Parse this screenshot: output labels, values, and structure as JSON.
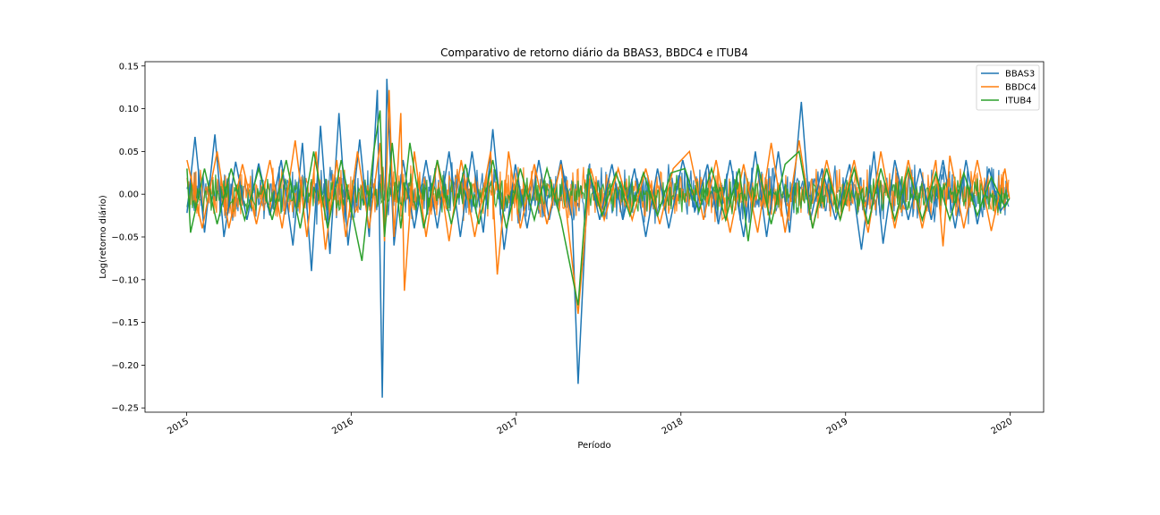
{
  "chart_data": {
    "type": "line",
    "title": "Comparativo de retorno diário da BBAS3, BBDC4 e ITUB4",
    "xlabel": "Período",
    "ylabel": "Log(retorno diário)",
    "xlim": [
      "2014-10-01",
      "2020-03-15"
    ],
    "ylim": [
      -0.255,
      0.155
    ],
    "x_ticks": [
      "2015",
      "2016",
      "2017",
      "2018",
      "2019",
      "2020"
    ],
    "y_ticks": [
      "0.15",
      "0.10",
      "0.05",
      "0.00",
      "−0.05",
      "−0.10",
      "−0.15",
      "−0.20",
      "−0.25"
    ],
    "y_tick_values": [
      0.15,
      0.1,
      0.05,
      0.0,
      -0.05,
      -0.1,
      -0.15,
      -0.2,
      -0.25
    ],
    "legend_position": "top-right",
    "grid": false,
    "series": [
      {
        "name": "BBAS3",
        "color": "#1f77b4",
        "points": [
          [
            "2015-01-02",
            -0.022
          ],
          [
            "2015-01-20",
            0.067
          ],
          [
            "2015-02-10",
            -0.045
          ],
          [
            "2015-03-05",
            0.07
          ],
          [
            "2015-03-25",
            -0.05
          ],
          [
            "2015-04-20",
            0.038
          ],
          [
            "2015-05-15",
            -0.03
          ],
          [
            "2015-06-10",
            0.036
          ],
          [
            "2015-07-05",
            -0.025
          ],
          [
            "2015-07-30",
            0.04
          ],
          [
            "2015-08-25",
            -0.06
          ],
          [
            "2015-09-15",
            0.06
          ],
          [
            "2015-10-05",
            -0.09
          ],
          [
            "2015-10-25",
            0.08
          ],
          [
            "2015-11-15",
            -0.07
          ],
          [
            "2015-12-05",
            0.095
          ],
          [
            "2015-12-25",
            -0.06
          ],
          [
            "2016-01-20",
            0.064
          ],
          [
            "2016-02-10",
            -0.05
          ],
          [
            "2016-02-28",
            0.122
          ],
          [
            "2016-03-10",
            -0.238
          ],
          [
            "2016-03-20",
            0.135
          ],
          [
            "2016-04-05",
            -0.06
          ],
          [
            "2016-04-25",
            0.04
          ],
          [
            "2016-05-20",
            -0.04
          ],
          [
            "2016-06-15",
            0.04
          ],
          [
            "2016-07-10",
            -0.04
          ],
          [
            "2016-08-05",
            0.05
          ],
          [
            "2016-08-30",
            -0.05
          ],
          [
            "2016-09-25",
            0.05
          ],
          [
            "2016-10-20",
            -0.045
          ],
          [
            "2016-11-10",
            0.076
          ],
          [
            "2016-12-05",
            -0.065
          ],
          [
            "2016-12-30",
            0.035
          ],
          [
            "2017-01-25",
            -0.04
          ],
          [
            "2017-02-20",
            0.04
          ],
          [
            "2017-03-15",
            -0.03
          ],
          [
            "2017-04-10",
            0.04
          ],
          [
            "2017-05-05",
            -0.03
          ],
          [
            "2017-05-18",
            -0.222
          ],
          [
            "2017-06-10",
            0.03
          ],
          [
            "2017-07-05",
            -0.03
          ],
          [
            "2017-08-01",
            0.035
          ],
          [
            "2017-08-25",
            -0.03
          ],
          [
            "2017-09-20",
            0.03
          ],
          [
            "2017-10-15",
            -0.05
          ],
          [
            "2017-11-10",
            0.03
          ],
          [
            "2017-12-05",
            -0.04
          ],
          [
            "2018-01-05",
            0.04
          ],
          [
            "2018-02-01",
            -0.02
          ],
          [
            "2018-03-01",
            0.035
          ],
          [
            "2018-03-25",
            -0.035
          ],
          [
            "2018-04-20",
            0.04
          ],
          [
            "2018-05-20",
            -0.05
          ],
          [
            "2018-06-15",
            0.05
          ],
          [
            "2018-07-10",
            -0.05
          ],
          [
            "2018-08-05",
            0.05
          ],
          [
            "2018-08-30",
            -0.045
          ],
          [
            "2018-09-25",
            0.108
          ],
          [
            "2018-10-15",
            -0.03
          ],
          [
            "2018-11-10",
            0.03
          ],
          [
            "2018-12-10",
            -0.03
          ],
          [
            "2019-01-10",
            0.035
          ],
          [
            "2019-02-05",
            -0.065
          ],
          [
            "2019-03-05",
            0.05
          ],
          [
            "2019-03-25",
            -0.058
          ],
          [
            "2019-04-20",
            0.04
          ],
          [
            "2019-05-20",
            -0.03
          ],
          [
            "2019-06-15",
            0.03
          ],
          [
            "2019-07-10",
            -0.03
          ],
          [
            "2019-08-05",
            0.04
          ],
          [
            "2019-09-01",
            -0.04
          ],
          [
            "2019-09-25",
            0.04
          ],
          [
            "2019-10-20",
            -0.035
          ],
          [
            "2019-11-15",
            0.03
          ],
          [
            "2019-12-10",
            -0.02
          ],
          [
            "2019-12-30",
            -0.005
          ]
        ]
      },
      {
        "name": "BBDC4",
        "color": "#ff7f0e",
        "points": [
          [
            "2015-01-02",
            0.04
          ],
          [
            "2015-02-05",
            -0.04
          ],
          [
            "2015-03-10",
            0.05
          ],
          [
            "2015-04-05",
            -0.04
          ],
          [
            "2015-05-05",
            0.035
          ],
          [
            "2015-06-05",
            -0.035
          ],
          [
            "2015-07-05",
            0.04
          ],
          [
            "2015-08-01",
            -0.04
          ],
          [
            "2015-08-30",
            0.063
          ],
          [
            "2015-09-25",
            -0.05
          ],
          [
            "2015-10-15",
            0.05
          ],
          [
            "2015-11-05",
            -0.065
          ],
          [
            "2015-11-30",
            0.04
          ],
          [
            "2015-12-20",
            -0.05
          ],
          [
            "2016-01-15",
            0.05
          ],
          [
            "2016-02-10",
            -0.04
          ],
          [
            "2016-03-05",
            0.06
          ],
          [
            "2016-03-15",
            -0.055
          ],
          [
            "2016-03-25",
            0.122
          ],
          [
            "2016-04-05",
            -0.05
          ],
          [
            "2016-04-20",
            0.095
          ],
          [
            "2016-04-28",
            -0.113
          ],
          [
            "2016-05-20",
            0.05
          ],
          [
            "2016-06-15",
            -0.05
          ],
          [
            "2016-07-10",
            0.04
          ],
          [
            "2016-08-05",
            -0.055
          ],
          [
            "2016-09-01",
            0.04
          ],
          [
            "2016-10-01",
            -0.05
          ],
          [
            "2016-11-05",
            0.05
          ],
          [
            "2016-11-20",
            -0.094
          ],
          [
            "2016-12-15",
            0.05
          ],
          [
            "2017-01-10",
            -0.04
          ],
          [
            "2017-02-10",
            0.035
          ],
          [
            "2017-03-10",
            -0.035
          ],
          [
            "2017-04-10",
            0.035
          ],
          [
            "2017-05-18",
            -0.14
          ],
          [
            "2017-06-15",
            0.03
          ],
          [
            "2017-07-15",
            -0.03
          ],
          [
            "2017-08-15",
            0.03
          ],
          [
            "2017-09-15",
            -0.03
          ],
          [
            "2017-10-15",
            0.03
          ],
          [
            "2017-11-15",
            -0.035
          ],
          [
            "2017-12-15",
            0.03
          ],
          [
            "2018-01-20",
            0.05
          ],
          [
            "2018-02-20",
            -0.03
          ],
          [
            "2018-03-20",
            0.04
          ],
          [
            "2018-04-20",
            -0.045
          ],
          [
            "2018-05-20",
            0.035
          ],
          [
            "2018-06-20",
            -0.045
          ],
          [
            "2018-07-20",
            0.06
          ],
          [
            "2018-08-20",
            -0.045
          ],
          [
            "2018-09-20",
            0.063
          ],
          [
            "2018-10-20",
            -0.04
          ],
          [
            "2018-11-20",
            0.04
          ],
          [
            "2018-12-20",
            -0.03
          ],
          [
            "2019-01-20",
            0.04
          ],
          [
            "2019-02-20",
            -0.045
          ],
          [
            "2019-03-20",
            0.05
          ],
          [
            "2019-04-20",
            -0.04
          ],
          [
            "2019-05-20",
            0.04
          ],
          [
            "2019-06-20",
            -0.04
          ],
          [
            "2019-07-20",
            0.04
          ],
          [
            "2019-08-05",
            -0.061
          ],
          [
            "2019-08-20",
            0.045
          ],
          [
            "2019-09-20",
            -0.04
          ],
          [
            "2019-10-20",
            0.04
          ],
          [
            "2019-11-20",
            -0.043
          ],
          [
            "2019-12-20",
            0.03
          ],
          [
            "2019-12-30",
            -0.005
          ]
        ]
      },
      {
        "name": "ITUB4",
        "color": "#2ca02c",
        "points": [
          [
            "2015-01-02",
            0.03
          ],
          [
            "2015-01-10",
            -0.045
          ],
          [
            "2015-02-10",
            0.03
          ],
          [
            "2015-03-10",
            -0.035
          ],
          [
            "2015-04-10",
            0.03
          ],
          [
            "2015-05-10",
            -0.03
          ],
          [
            "2015-06-10",
            0.03
          ],
          [
            "2015-07-10",
            -0.03
          ],
          [
            "2015-08-10",
            0.04
          ],
          [
            "2015-09-10",
            -0.04
          ],
          [
            "2015-10-10",
            0.05
          ],
          [
            "2015-11-10",
            -0.04
          ],
          [
            "2015-12-10",
            0.04
          ],
          [
            "2016-01-10",
            -0.04
          ],
          [
            "2016-01-25",
            -0.078
          ],
          [
            "2016-02-20",
            0.05
          ],
          [
            "2016-03-05",
            0.098
          ],
          [
            "2016-03-15",
            -0.05
          ],
          [
            "2016-04-01",
            0.06
          ],
          [
            "2016-04-20",
            -0.04
          ],
          [
            "2016-05-10",
            0.06
          ],
          [
            "2016-06-10",
            -0.04
          ],
          [
            "2016-07-10",
            0.04
          ],
          [
            "2016-08-10",
            -0.035
          ],
          [
            "2016-09-10",
            0.035
          ],
          [
            "2016-10-10",
            -0.035
          ],
          [
            "2016-11-10",
            0.04
          ],
          [
            "2016-12-10",
            -0.04
          ],
          [
            "2017-01-10",
            0.03
          ],
          [
            "2017-02-10",
            -0.03
          ],
          [
            "2017-03-10",
            0.03
          ],
          [
            "2017-04-10",
            -0.03
          ],
          [
            "2017-05-18",
            -0.13
          ],
          [
            "2017-06-10",
            0.03
          ],
          [
            "2017-07-10",
            -0.025
          ],
          [
            "2017-08-10",
            0.025
          ],
          [
            "2017-09-10",
            -0.025
          ],
          [
            "2017-10-10",
            0.025
          ],
          [
            "2017-11-10",
            -0.025
          ],
          [
            "2017-12-10",
            0.025
          ],
          [
            "2018-01-10",
            0.03
          ],
          [
            "2018-02-10",
            -0.02
          ],
          [
            "2018-03-10",
            0.03
          ],
          [
            "2018-04-10",
            -0.03
          ],
          [
            "2018-05-10",
            0.03
          ],
          [
            "2018-05-30",
            -0.055
          ],
          [
            "2018-06-20",
            0.035
          ],
          [
            "2018-07-20",
            -0.035
          ],
          [
            "2018-08-20",
            0.035
          ],
          [
            "2018-09-20",
            0.05
          ],
          [
            "2018-10-20",
            -0.04
          ],
          [
            "2018-11-20",
            0.03
          ],
          [
            "2018-12-20",
            -0.03
          ],
          [
            "2019-01-20",
            0.03
          ],
          [
            "2019-02-20",
            -0.035
          ],
          [
            "2019-03-20",
            0.03
          ],
          [
            "2019-04-20",
            -0.03
          ],
          [
            "2019-05-20",
            0.03
          ],
          [
            "2019-06-20",
            -0.03
          ],
          [
            "2019-07-20",
            0.025
          ],
          [
            "2019-08-20",
            -0.03
          ],
          [
            "2019-09-20",
            0.025
          ],
          [
            "2019-10-20",
            -0.025
          ],
          [
            "2019-11-20",
            0.02
          ],
          [
            "2019-12-20",
            -0.015
          ],
          [
            "2019-12-30",
            -0.005
          ]
        ]
      }
    ]
  }
}
